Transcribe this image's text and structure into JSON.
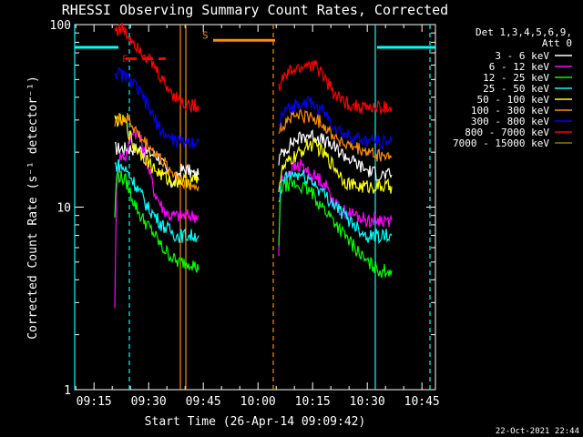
{
  "chart_data": {
    "type": "line",
    "title": "RHESSI Observing Summary Count Rates, Corrected",
    "xlabel": "Start Time (26-Apr-14 09:09:42)",
    "ylabel": "Corrected Count Rate (s⁻¹ detector⁻¹)",
    "yscale": "log",
    "ylim": [
      1,
      100
    ],
    "xlim_minutes": [
      0,
      99
    ],
    "x_ticks": [
      {
        "m": 5.3,
        "label": "09:15"
      },
      {
        "m": 20.3,
        "label": "09:30"
      },
      {
        "m": 35.3,
        "label": "09:45"
      },
      {
        "m": 50.3,
        "label": "10:00"
      },
      {
        "m": 65.3,
        "label": "10:15"
      },
      {
        "m": 80.3,
        "label": "10:30"
      },
      {
        "m": 95.3,
        "label": "10:45"
      }
    ],
    "y_ticks": [
      {
        "v": 1,
        "label": "1"
      },
      {
        "v": 10,
        "label": "10"
      },
      {
        "v": 100,
        "label": "100"
      }
    ],
    "legend": {
      "header": [
        "Det 1,3,4,5,6,9,",
        "Att 0"
      ],
      "position": "top-right"
    },
    "series": [
      {
        "name": "3 - 6 keV",
        "color": "#ffffff",
        "seg1": [
          [
            11,
            21
          ],
          [
            14,
            21
          ],
          [
            17,
            21
          ],
          [
            20,
            20
          ],
          [
            23,
            19
          ],
          [
            25,
            16
          ],
          [
            27,
            13
          ],
          [
            29,
            16
          ],
          [
            31,
            16
          ],
          [
            33,
            15
          ],
          [
            34,
            15
          ]
        ],
        "seg2": [
          [
            56,
            18
          ],
          [
            57,
            20
          ],
          [
            60,
            23
          ],
          [
            64,
            25
          ],
          [
            67,
            24
          ],
          [
            70,
            22
          ],
          [
            73,
            20
          ],
          [
            76,
            18
          ],
          [
            80,
            16
          ],
          [
            84,
            15
          ],
          [
            87,
            15
          ]
        ]
      },
      {
        "name": "6 - 12 keV",
        "color": "#ff00ff",
        "seg1": [
          [
            11,
            3
          ],
          [
            11.5,
            12
          ],
          [
            12,
            19
          ],
          [
            14,
            19
          ],
          [
            16,
            27
          ],
          [
            18,
            24
          ],
          [
            20,
            17
          ],
          [
            22,
            12
          ],
          [
            24,
            10
          ],
          [
            26,
            9
          ],
          [
            28,
            9
          ],
          [
            30,
            9
          ],
          [
            32,
            9
          ],
          [
            34,
            9
          ]
        ],
        "seg2": [
          [
            56,
            5.5
          ],
          [
            56.5,
            13
          ],
          [
            57,
            14
          ],
          [
            59,
            16
          ],
          [
            62,
            17
          ],
          [
            65,
            15
          ],
          [
            68,
            14
          ],
          [
            70,
            12
          ],
          [
            72,
            10
          ],
          [
            74,
            9.5
          ],
          [
            77,
            9
          ],
          [
            80,
            8.5
          ],
          [
            84,
            8.5
          ],
          [
            87,
            8.5
          ]
        ]
      },
      {
        "name": "12 - 25 keV",
        "color": "#00ff00",
        "seg1": [
          [
            11,
            9
          ],
          [
            11.5,
            15
          ],
          [
            12,
            15
          ],
          [
            14,
            14
          ],
          [
            16,
            11
          ],
          [
            18,
            9
          ],
          [
            20,
            8
          ],
          [
            22,
            7
          ],
          [
            24,
            6
          ],
          [
            26,
            5.5
          ],
          [
            28,
            5
          ],
          [
            30,
            5
          ],
          [
            32,
            5
          ],
          [
            34,
            4.5
          ]
        ],
        "seg2": [
          [
            56,
            6
          ],
          [
            56.5,
            12
          ],
          [
            57,
            13
          ],
          [
            59,
            13.5
          ],
          [
            62,
            13
          ],
          [
            65,
            12
          ],
          [
            68,
            10
          ],
          [
            70,
            9
          ],
          [
            72,
            8
          ],
          [
            74,
            7
          ],
          [
            77,
            6
          ],
          [
            80,
            5
          ],
          [
            84,
            4.5
          ],
          [
            87,
            4.5
          ]
        ]
      },
      {
        "name": "25 - 50 keV",
        "color": "#00ffff",
        "seg1": [
          [
            11,
            17
          ],
          [
            12,
            17
          ],
          [
            14,
            16
          ],
          [
            16,
            14
          ],
          [
            18,
            12
          ],
          [
            20,
            10
          ],
          [
            22,
            9
          ],
          [
            24,
            8
          ],
          [
            26,
            7.5
          ],
          [
            28,
            7
          ],
          [
            30,
            7
          ],
          [
            32,
            7
          ],
          [
            34,
            7
          ]
        ],
        "seg2": [
          [
            56,
            10
          ],
          [
            57,
            14
          ],
          [
            59,
            15
          ],
          [
            62,
            15
          ],
          [
            65,
            14
          ],
          [
            68,
            12
          ],
          [
            70,
            11
          ],
          [
            72,
            10
          ],
          [
            74,
            9
          ],
          [
            77,
            8
          ],
          [
            80,
            7
          ],
          [
            84,
            7
          ],
          [
            87,
            7
          ]
        ]
      },
      {
        "name": "50 - 100 keV",
        "color": "#ffff00",
        "seg1": [
          [
            11,
            30
          ],
          [
            12,
            30
          ],
          [
            14,
            29
          ],
          [
            16,
            22
          ],
          [
            18,
            20
          ],
          [
            20,
            18
          ],
          [
            22,
            16
          ],
          [
            24,
            15
          ],
          [
            26,
            14
          ],
          [
            28,
            14
          ],
          [
            30,
            14
          ],
          [
            32,
            14
          ],
          [
            34,
            14
          ]
        ],
        "seg2": [
          [
            56,
            13
          ],
          [
            57,
            16
          ],
          [
            59,
            18
          ],
          [
            62,
            20
          ],
          [
            64,
            22
          ],
          [
            66,
            22
          ],
          [
            68,
            20
          ],
          [
            70,
            18
          ],
          [
            72,
            16
          ],
          [
            74,
            14
          ],
          [
            77,
            13
          ],
          [
            80,
            13
          ],
          [
            84,
            13
          ],
          [
            87,
            13
          ]
        ]
      },
      {
        "name": "100 - 300 keV",
        "color": "#ff8c00",
        "seg1": [
          [
            11,
            30
          ],
          [
            12,
            30
          ],
          [
            14,
            31
          ],
          [
            16,
            28
          ],
          [
            18,
            24
          ],
          [
            20,
            22
          ],
          [
            22,
            20
          ],
          [
            24,
            18
          ],
          [
            26,
            16
          ],
          [
            28,
            15
          ],
          [
            30,
            14
          ],
          [
            32,
            13
          ],
          [
            34,
            13
          ]
        ],
        "seg2": [
          [
            56,
            26
          ],
          [
            57,
            28
          ],
          [
            59,
            31
          ],
          [
            62,
            32
          ],
          [
            65,
            31
          ],
          [
            68,
            29
          ],
          [
            70,
            26
          ],
          [
            72,
            24
          ],
          [
            74,
            22
          ],
          [
            77,
            21
          ],
          [
            80,
            20
          ],
          [
            84,
            19
          ],
          [
            87,
            19
          ]
        ]
      },
      {
        "name": "300 - 800 keV",
        "color": "#0000ff",
        "seg1": [
          [
            11,
            55
          ],
          [
            12,
            54
          ],
          [
            14,
            52
          ],
          [
            16,
            48
          ],
          [
            18,
            42
          ],
          [
            20,
            36
          ],
          [
            22,
            30
          ],
          [
            24,
            26
          ],
          [
            26,
            24
          ],
          [
            28,
            23
          ],
          [
            30,
            23
          ],
          [
            32,
            23
          ],
          [
            34,
            23
          ]
        ],
        "seg2": [
          [
            56,
            28
          ],
          [
            57,
            32
          ],
          [
            59,
            35
          ],
          [
            62,
            38
          ],
          [
            65,
            37
          ],
          [
            68,
            34
          ],
          [
            70,
            30
          ],
          [
            72,
            27
          ],
          [
            74,
            25
          ],
          [
            77,
            24
          ],
          [
            80,
            23
          ],
          [
            84,
            23
          ],
          [
            87,
            23
          ]
        ]
      },
      {
        "name": "800 - 7000 keV",
        "color": "#ff0000",
        "seg1": [
          [
            11,
            95
          ],
          [
            12,
            94
          ],
          [
            13,
            95
          ],
          [
            14,
            90
          ],
          [
            16,
            82
          ],
          [
            18,
            74
          ],
          [
            20,
            66
          ],
          [
            22,
            58
          ],
          [
            24,
            50
          ],
          [
            26,
            44
          ],
          [
            28,
            40
          ],
          [
            30,
            37
          ],
          [
            32,
            36
          ],
          [
            34,
            36
          ]
        ],
        "seg2": [
          [
            56,
            45
          ],
          [
            57,
            50
          ],
          [
            59,
            55
          ],
          [
            62,
            58
          ],
          [
            64,
            61
          ],
          [
            66,
            59
          ],
          [
            68,
            54
          ],
          [
            70,
            46
          ],
          [
            72,
            40
          ],
          [
            74,
            38
          ],
          [
            77,
            36
          ],
          [
            80,
            35
          ],
          [
            84,
            35
          ],
          [
            87,
            35
          ]
        ]
      },
      {
        "name": "7000 - 15000 keV",
        "color": "#808000",
        "seg1": [],
        "seg2": []
      }
    ],
    "markers": {
      "saa_bar_top": {
        "start": 0,
        "end": 12,
        "y": 75,
        "color": "#00ffff",
        "label": ""
      },
      "saa_bar_top2": {
        "start": 83,
        "end": 99,
        "y": 75,
        "color": "#00ffff",
        "label": ""
      },
      "night_bar": {
        "start": 38,
        "end": 55,
        "y": 82,
        "color": "#ff8c00",
        "label": "S"
      },
      "flare_marks": [
        {
          "m": 13,
          "y": 65,
          "label": "F",
          "color": "#ff0000"
        }
      ],
      "flare_bar": {
        "start": 14,
        "end": 25,
        "y": 65,
        "color": "#ff0000"
      },
      "vlines": [
        {
          "m": 0,
          "color": "#00ffff",
          "style": "solid"
        },
        {
          "m": 15,
          "color": "#00ffff",
          "style": "dashed"
        },
        {
          "m": 29,
          "color": "#ff8c00",
          "style": "solid"
        },
        {
          "m": 30.5,
          "color": "#ff8c00",
          "style": "solid"
        },
        {
          "m": 54.5,
          "color": "#ff8c00",
          "style": "dashed"
        },
        {
          "m": 82.5,
          "color": "#00ffff",
          "style": "solid"
        },
        {
          "m": 97.5,
          "color": "#00ffff",
          "style": "dashed"
        }
      ]
    },
    "footer": "22-Oct-2021 22:44"
  }
}
